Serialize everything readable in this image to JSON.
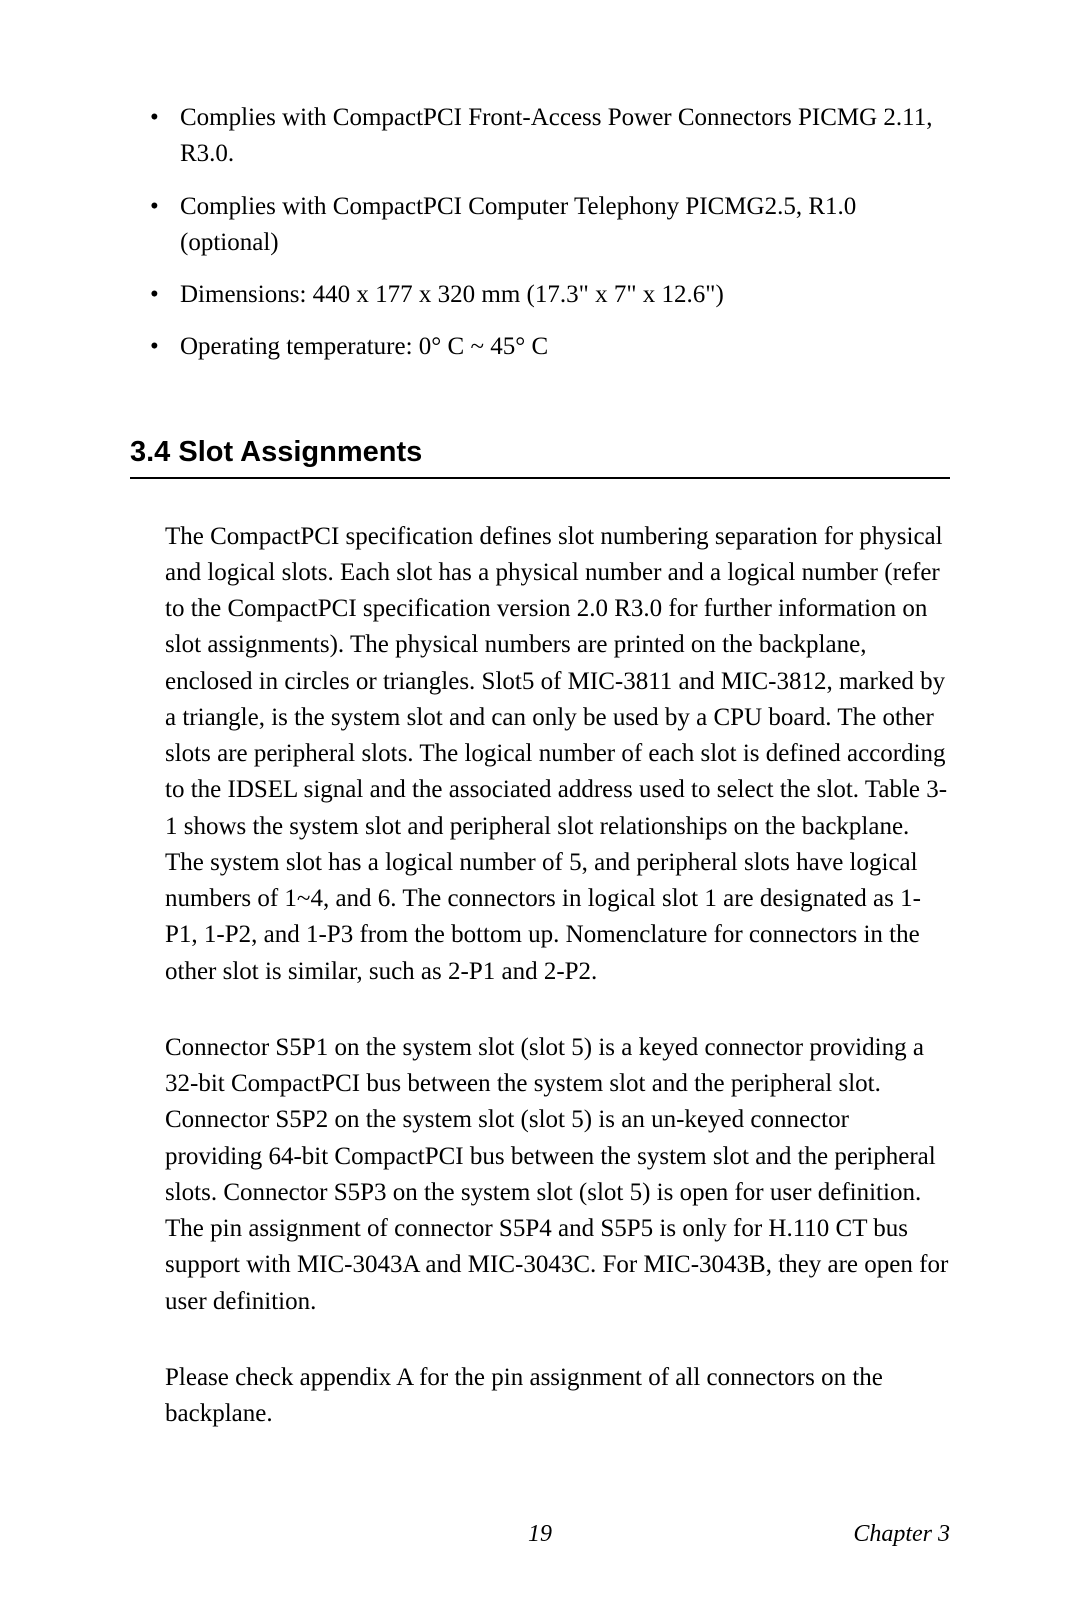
{
  "bullets": {
    "item1": "Complies with CompactPCI Front-Access Power Connectors PICMG 2.11, R3.0.",
    "item2": "Complies with CompactPCI Computer Telephony PICMG2.5, R1.0 (optional)",
    "item3": "Dimensions: 440 x 177 x 320 mm (17.3\" x 7\" x 12.6\")",
    "item4": "Operating temperature: 0° C ~ 45° C"
  },
  "section": {
    "number": "3.4",
    "title": "Slot Assignments"
  },
  "paragraphs": {
    "p1": "The CompactPCI specification defines slot numbering separation for physical and logical slots. Each slot has a physical number and a logical number (refer to the CompactPCI specification version 2.0 R3.0 for further information on slot assignments). The physical numbers are printed on the backplane, enclosed in circles or triangles. Slot5 of MIC-3811 and MIC-3812, marked by a triangle, is the system slot and can only be used by a CPU board. The other slots are peripheral slots. The logical number of each slot is defined according to the IDSEL signal and the associated address used to select the slot. Table 3-1 shows the system slot and peripheral slot relationships on the backplane. The system slot has a logical number of 5, and peripheral slots have logical numbers of 1~4, and 6. The connectors in logical slot 1 are designated as 1-P1, 1-P2, and 1-P3 from the bottom up. Nomenclature for connectors in the other slot is similar, such as 2-P1 and 2-P2.",
    "p2": "Connector S5P1 on the system slot (slot 5) is a keyed connector providing a 32-bit CompactPCI bus between the system slot and the peripheral slot. Connector S5P2 on the system slot (slot 5) is an un-keyed connector providing 64-bit CompactPCI bus between the system slot and the peripheral slots. Connector S5P3 on the system slot (slot 5) is open for user definition. The pin assignment of connector S5P4 and S5P5 is only for H.110 CT bus support with MIC-3043A and MIC-3043C.  For MIC-3043B, they are open for user definition.",
    "p3": "Please check appendix A for the pin assignment of all connectors on the backplane."
  },
  "footer": {
    "pageNumber": "19",
    "chapterLabel": "Chapter 3"
  }
}
